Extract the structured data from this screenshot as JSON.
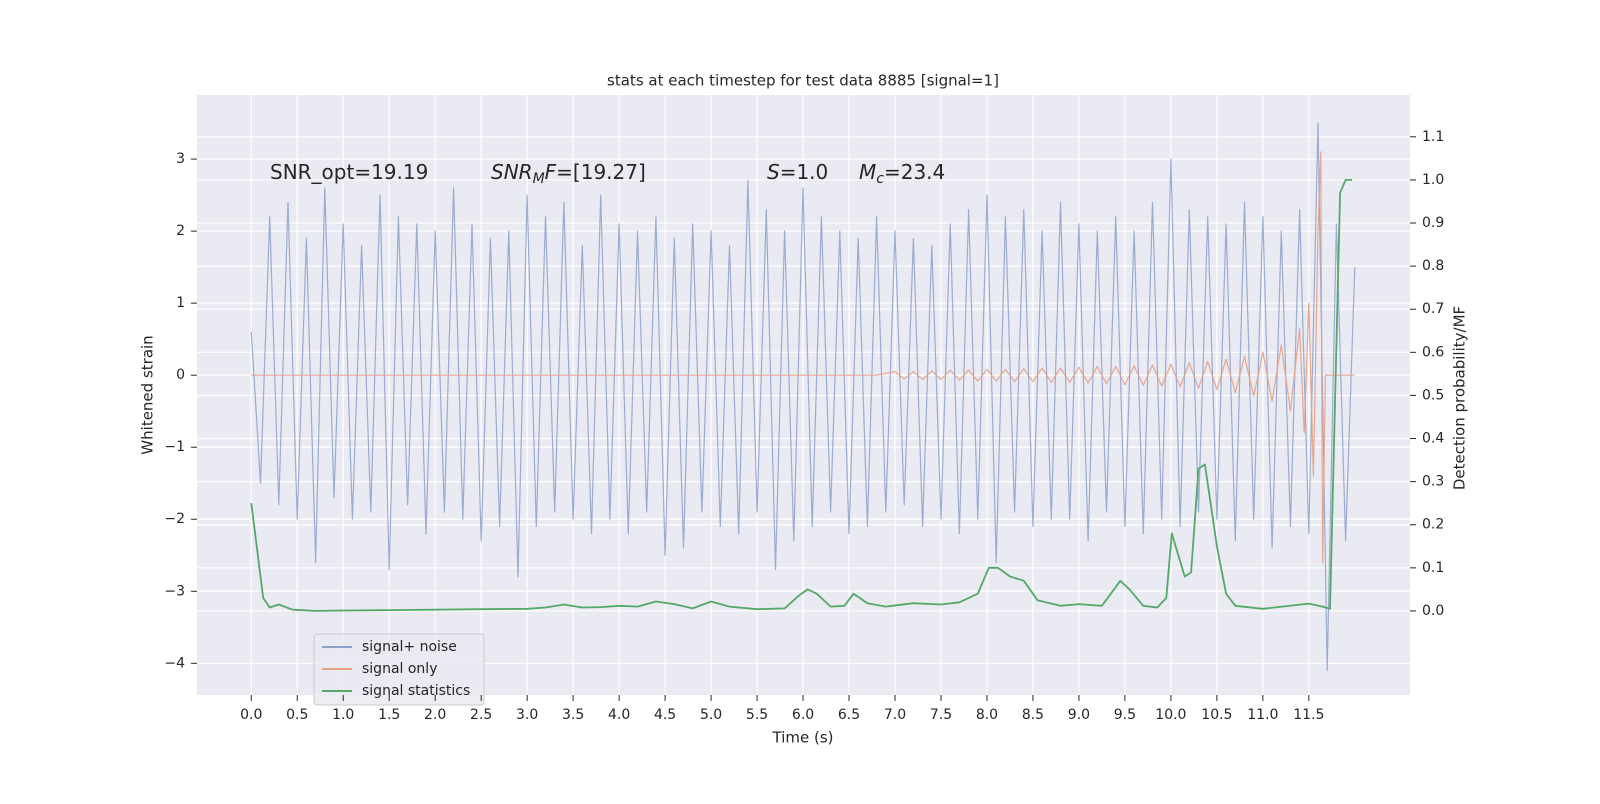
{
  "chart_data": {
    "type": "line",
    "title": "stats at each timestep for test data 8885 [signal=1]",
    "x_label": "Time (s)",
    "y_label": "Whitened strain",
    "y2_label": "Detection probability/MF",
    "annotations": [
      [
        "SNR_opt=19.19"
      ],
      [
        "SNR",
        "M",
        "F",
        "=[19.27]"
      ],
      [
        "S",
        "=1.0"
      ],
      [
        "M",
        "c",
        "=23.4"
      ]
    ],
    "xlim": [
      -0.59,
      12.6
    ],
    "ylim": [
      -4.44,
      3.89
    ],
    "y2lim": [
      -0.195,
      1.197
    ],
    "xticks": [
      {
        "value": 0,
        "label": "0.0"
      },
      0.5,
      {
        "value": 1,
        "label": "1.0"
      },
      1.5,
      {
        "value": 2,
        "label": "2.0"
      },
      2.5,
      {
        "value": 3,
        "label": "3.0"
      },
      3.5,
      {
        "value": 4,
        "label": "4.0"
      },
      4.5,
      {
        "value": 5,
        "label": "5.0"
      },
      5.5,
      {
        "value": 6,
        "label": "6.0"
      },
      6.5,
      {
        "value": 7,
        "label": "7.0"
      },
      7.5,
      {
        "value": 8,
        "label": "8.0"
      },
      8.5,
      {
        "value": 9,
        "label": "9.0"
      },
      9.5,
      {
        "value": 10,
        "label": "10.0"
      },
      10.5,
      {
        "value": 11,
        "label": "11.0"
      },
      11.5
    ],
    "yticks": [
      {
        "value": -4,
        "label": "−4"
      },
      {
        "value": -3,
        "label": "−3"
      },
      {
        "value": -2,
        "label": "−2"
      },
      {
        "value": -1,
        "label": "−1"
      },
      0,
      1,
      2,
      3
    ],
    "y2ticks": [
      {
        "value": 0,
        "label": "0.0"
      },
      0.1,
      0.2,
      0.3,
      0.4,
      0.5,
      0.6,
      0.7,
      0.8,
      0.9,
      {
        "value": 1,
        "label": "1.0"
      },
      1.1
    ],
    "grid": true,
    "legend": "lower left",
    "series": [
      {
        "name": "signal+ noise",
        "color": "#8da0cb",
        "x": [
          0.0,
          0.1,
          0.2,
          0.3,
          0.4,
          0.5,
          0.6,
          0.7,
          0.8,
          0.9,
          1.0,
          1.1,
          1.2,
          1.3,
          1.4,
          1.5,
          1.6,
          1.7,
          1.8,
          1.9,
          2.0,
          2.1,
          2.2,
          2.3,
          2.4,
          2.5,
          2.6,
          2.7,
          2.8,
          2.9,
          3.0,
          3.1,
          3.2,
          3.3,
          3.4,
          3.5,
          3.6,
          3.7,
          3.8,
          3.9,
          4.0,
          4.1,
          4.2,
          4.3,
          4.4,
          4.5,
          4.6,
          4.7,
          4.8,
          4.9,
          5.0,
          5.1,
          5.2,
          5.3,
          5.4,
          5.5,
          5.6,
          5.7,
          5.8,
          5.9,
          6.0,
          6.1,
          6.2,
          6.3,
          6.4,
          6.5,
          6.6,
          6.7,
          6.8,
          6.9,
          7.0,
          7.1,
          7.2,
          7.3,
          7.4,
          7.5,
          7.6,
          7.7,
          7.8,
          7.9,
          8.0,
          8.1,
          8.2,
          8.3,
          8.4,
          8.5,
          8.6,
          8.7,
          8.8,
          8.9,
          9.0,
          9.1,
          9.2,
          9.3,
          9.4,
          9.5,
          9.6,
          9.7,
          9.8,
          9.9,
          10.0,
          10.1,
          10.2,
          10.3,
          10.4,
          10.5,
          10.6,
          10.7,
          10.8,
          10.9,
          11.0,
          11.1,
          11.2,
          11.3,
          11.4,
          11.5,
          11.6,
          11.7,
          11.8,
          11.9,
          12.0
        ],
        "values": [
          0.6,
          -1.5,
          2.2,
          -1.8,
          2.4,
          -2.0,
          1.9,
          -2.6,
          2.6,
          -1.7,
          2.1,
          -2.0,
          1.8,
          -1.9,
          2.5,
          -2.7,
          2.2,
          -1.8,
          2.1,
          -2.2,
          2.0,
          -1.9,
          2.6,
          -2.0,
          2.1,
          -2.3,
          1.9,
          -2.1,
          2.0,
          -2.8,
          2.5,
          -2.1,
          2.2,
          -1.9,
          2.4,
          -2.0,
          1.8,
          -2.2,
          2.5,
          -2.0,
          2.1,
          -2.2,
          2.0,
          -1.9,
          2.2,
          -2.5,
          1.9,
          -2.4,
          2.1,
          -1.9,
          2.0,
          -2.1,
          1.8,
          -2.2,
          2.7,
          -1.9,
          2.3,
          -2.7,
          2.0,
          -2.3,
          2.6,
          -2.1,
          2.2,
          -1.9,
          2.0,
          -2.2,
          1.9,
          -2.1,
          2.2,
          -1.9,
          2.0,
          -1.8,
          1.9,
          -2.1,
          1.8,
          -2.0,
          2.1,
          -2.2,
          2.3,
          -2.0,
          2.5,
          -2.6,
          2.2,
          -1.9,
          2.3,
          -2.1,
          2.0,
          -2.0,
          2.4,
          -2.0,
          2.1,
          -2.3,
          2.0,
          -1.9,
          2.2,
          -2.1,
          2.0,
          -2.2,
          2.4,
          -2.0,
          3.0,
          -2.1,
          2.3,
          -1.9,
          2.2,
          -2.0,
          2.1,
          -2.3,
          2.4,
          -2.0,
          2.2,
          -2.4,
          2.0,
          -2.1,
          2.3,
          -2.2,
          3.5,
          -4.1,
          2.1,
          -2.3,
          1.5
        ]
      },
      {
        "name": "signal only",
        "color": "#e5a084",
        "x": [
          0.0,
          6.8,
          7.0,
          7.1,
          7.2,
          7.3,
          7.4,
          7.5,
          7.6,
          7.7,
          7.8,
          7.9,
          8.0,
          8.1,
          8.2,
          8.3,
          8.4,
          8.5,
          8.6,
          8.7,
          8.8,
          8.9,
          9.0,
          9.1,
          9.2,
          9.3,
          9.4,
          9.5,
          9.6,
          9.7,
          9.8,
          9.9,
          10.0,
          10.1,
          10.2,
          10.3,
          10.4,
          10.5,
          10.6,
          10.7,
          10.8,
          10.9,
          11.0,
          11.1,
          11.2,
          11.3,
          11.4,
          11.45,
          11.5,
          11.55,
          11.6,
          11.63,
          11.65,
          11.68,
          12.0
        ],
        "values": [
          0,
          0,
          0.05,
          -0.05,
          0.05,
          -0.06,
          0.06,
          -0.06,
          0.07,
          -0.07,
          0.07,
          -0.08,
          0.08,
          -0.08,
          0.08,
          -0.09,
          0.09,
          -0.09,
          0.1,
          -0.1,
          0.1,
          -0.1,
          0.11,
          -0.11,
          0.12,
          -0.12,
          0.12,
          -0.13,
          0.13,
          -0.14,
          0.14,
          -0.15,
          0.15,
          -0.16,
          0.17,
          -0.18,
          0.19,
          -0.2,
          0.22,
          -0.24,
          0.26,
          -0.29,
          0.32,
          -0.36,
          0.42,
          -0.5,
          0.65,
          -0.8,
          1.0,
          -1.4,
          2.0,
          3.1,
          -2.6,
          0,
          0
        ]
      },
      {
        "name": "signal statistics",
        "color": "#55a868",
        "axis": "y2",
        "x": [
          0.0,
          0.13,
          0.2,
          0.3,
          0.45,
          0.7,
          1.0,
          1.5,
          2.0,
          2.5,
          3.0,
          3.2,
          3.4,
          3.6,
          3.8,
          4.0,
          4.2,
          4.4,
          4.6,
          4.8,
          5.0,
          5.2,
          5.5,
          5.8,
          5.95,
          6.05,
          6.15,
          6.3,
          6.45,
          6.55,
          6.7,
          6.9,
          7.2,
          7.5,
          7.7,
          7.9,
          8.02,
          8.12,
          8.25,
          8.4,
          8.55,
          8.8,
          9.0,
          9.25,
          9.45,
          9.55,
          9.7,
          9.85,
          9.95,
          10.01,
          10.15,
          10.22,
          10.3,
          10.37,
          10.5,
          10.6,
          10.7,
          11.0,
          11.5,
          11.65,
          11.73,
          11.84,
          11.9,
          11.97
        ],
        "values": [
          0.25,
          0.03,
          0.008,
          0.015,
          0.003,
          0.0,
          0.001,
          0.002,
          0.003,
          0.004,
          0.005,
          0.008,
          0.015,
          0.008,
          0.009,
          0.012,
          0.01,
          0.022,
          0.016,
          0.006,
          0.022,
          0.01,
          0.004,
          0.006,
          0.035,
          0.05,
          0.04,
          0.01,
          0.012,
          0.04,
          0.018,
          0.01,
          0.018,
          0.015,
          0.02,
          0.04,
          0.1,
          0.1,
          0.08,
          0.07,
          0.025,
          0.012,
          0.016,
          0.012,
          0.07,
          0.05,
          0.012,
          0.008,
          0.03,
          0.18,
          0.08,
          0.09,
          0.33,
          0.34,
          0.15,
          0.04,
          0.012,
          0.005,
          0.017,
          0.01,
          0.005,
          0.97,
          1.0,
          1.0
        ]
      }
    ]
  }
}
